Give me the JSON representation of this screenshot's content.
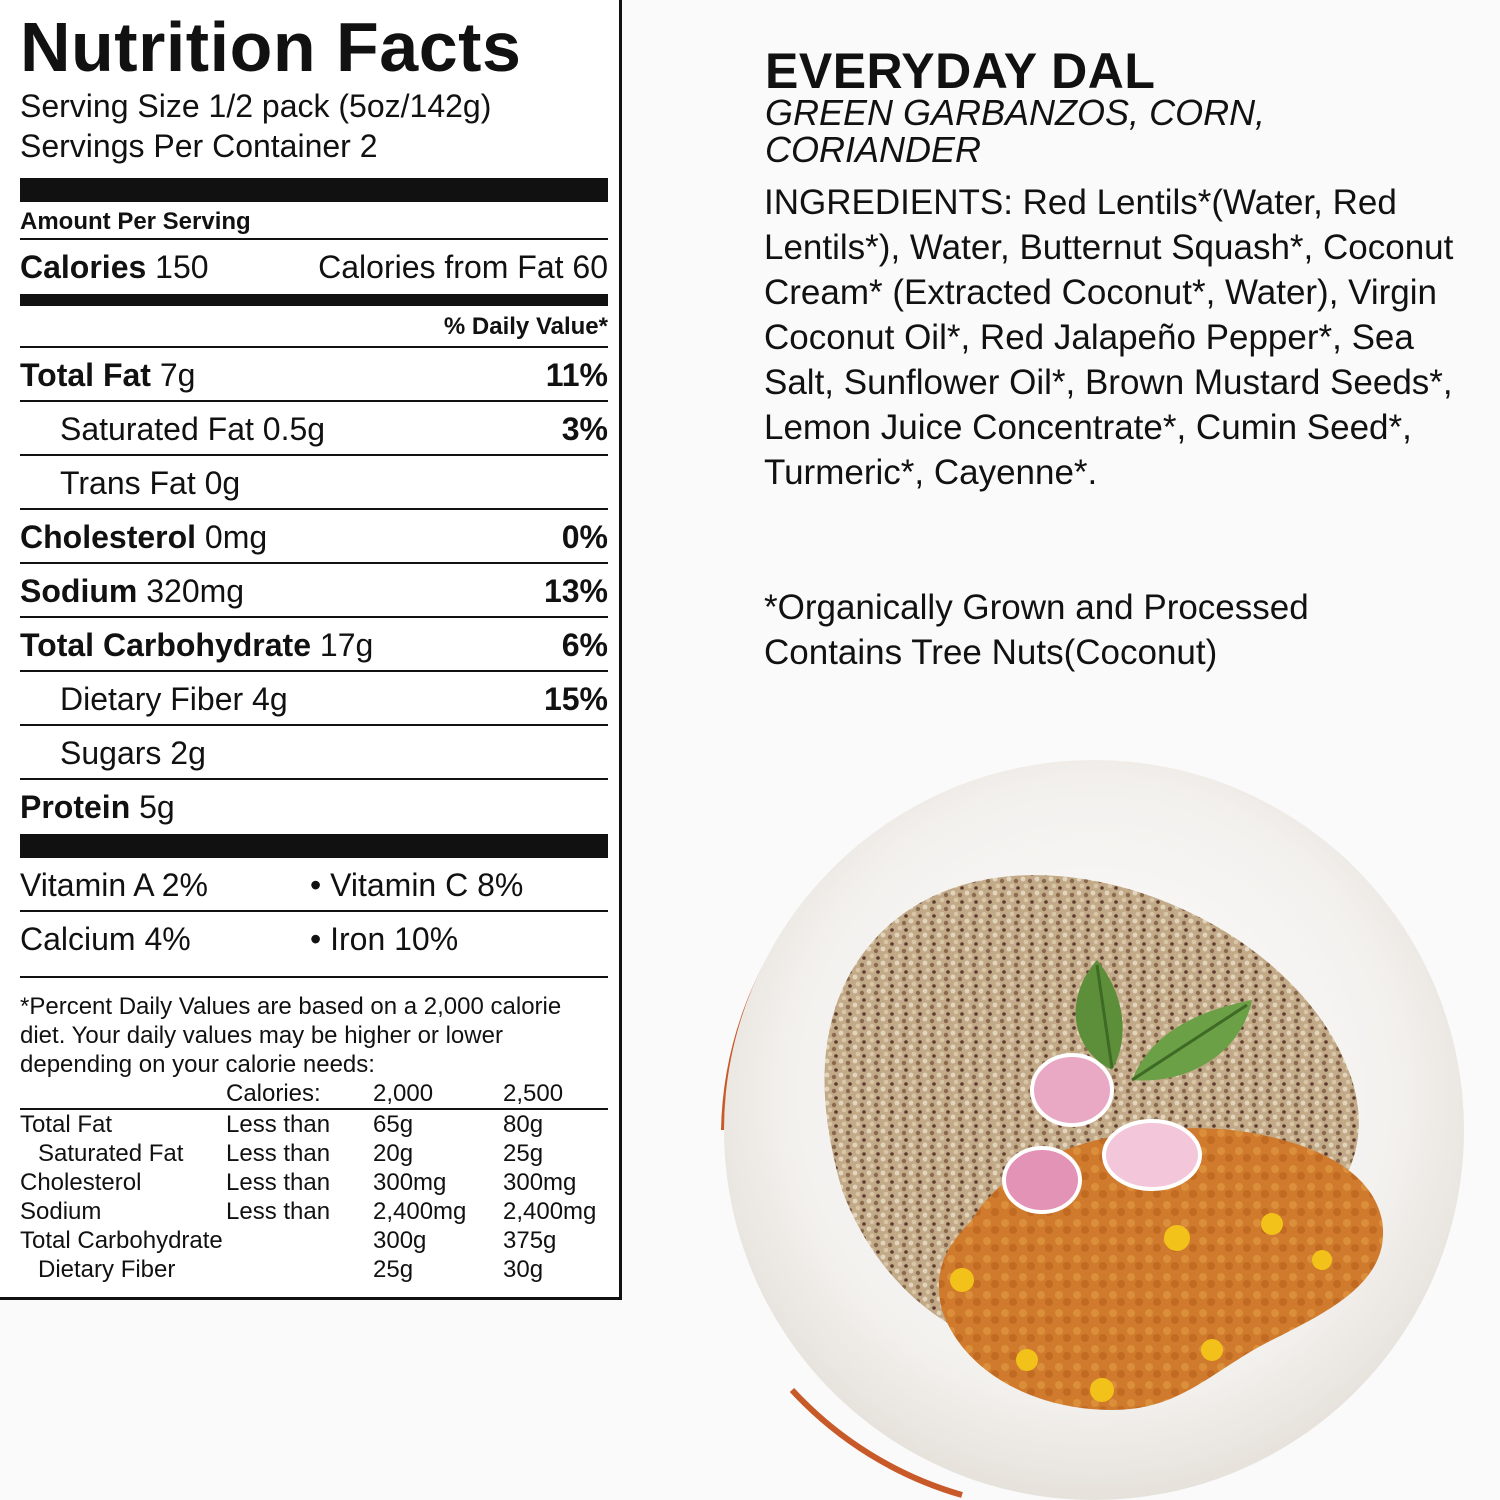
{
  "nutrition": {
    "title": "Nutrition Facts",
    "serving_size": "Serving Size 1/2 pack (5oz/142g)",
    "servings_per_container": "Servings Per Container 2",
    "amount_per_serving": "Amount Per Serving",
    "calories_label": "Calories",
    "calories_value": "150",
    "calories_from_fat": "Calories from Fat 60",
    "daily_value_header": "% Daily Value*",
    "nutrients": [
      {
        "label": "Total Fat",
        "amount": "7g",
        "pct": "11%"
      },
      {
        "label": "Saturated Fat",
        "amount": "0.5g",
        "pct": "3%"
      },
      {
        "label": "Trans Fat",
        "amount": "0g",
        "pct": ""
      },
      {
        "label": "Cholesterol",
        "amount": "0mg",
        "pct": "0%"
      },
      {
        "label": "Sodium",
        "amount": "320mg",
        "pct": "13%"
      },
      {
        "label": "Total Carbohydrate",
        "amount": "17g",
        "pct": "6%"
      },
      {
        "label": "Dietary Fiber",
        "amount": "4g",
        "pct": "15%"
      },
      {
        "label": "Sugars",
        "amount": "2g",
        "pct": ""
      },
      {
        "label": "Protein",
        "amount": "5g",
        "pct": ""
      }
    ],
    "vitamins": [
      {
        "left": "Vitamin A 2%",
        "right": "• Vitamin C 8%"
      },
      {
        "left": "Calcium 4%",
        "right": "• Iron 10%"
      }
    ],
    "footnote": "*Percent Daily Values are based on a 2,000 calorie diet. Your daily values may be higher or lower depending on your calorie needs:",
    "dv_table": {
      "header": [
        "",
        "Calories:",
        "2,000",
        "2,500"
      ],
      "rows": [
        [
          "Total Fat",
          "Less than",
          "65g",
          "80g"
        ],
        [
          "Saturated Fat",
          "Less than",
          "20g",
          "25g"
        ],
        [
          "Cholesterol",
          "Less than",
          "300mg",
          "300mg"
        ],
        [
          "Sodium",
          "Less than",
          "2,400mg",
          "2,400mg"
        ],
        [
          "Total Carbohydrate",
          "",
          "300g",
          "375g"
        ],
        [
          "Dietary Fiber",
          "",
          "25g",
          "30g"
        ]
      ]
    }
  },
  "product": {
    "name": "EVERYDAY DAL",
    "subtitle": "GREEN GARBANZOS, CORN, CORIANDER",
    "ingredients": "INGREDIENTS: Red Lentils*(Water, Red Lentils*), Water, Butternut Squash*, Coconut Cream* (Extracted Coconut*, Water), Virgin Coconut Oil*, Red Jalapeño Pepper*, Sea Salt, Sunflower Oil*, Brown Mustard Seeds*, Lemon Juice Concentrate*, Cumin Seed*, Turmeric*, Cayenne*.",
    "organic_note": "*Organically Grown and Processed",
    "allergen_note": "Contains Tree Nuts(Coconut)"
  },
  "colors": {
    "ink": "#111111",
    "bowl": "#f3f1ee",
    "bowl_rim": "#c85a2a",
    "quinoa": "#b39a7a",
    "dal": "#d07a2a",
    "corn": "#f2c21a",
    "mint": "#5d8f3a",
    "radish": "#e9a9c4"
  }
}
